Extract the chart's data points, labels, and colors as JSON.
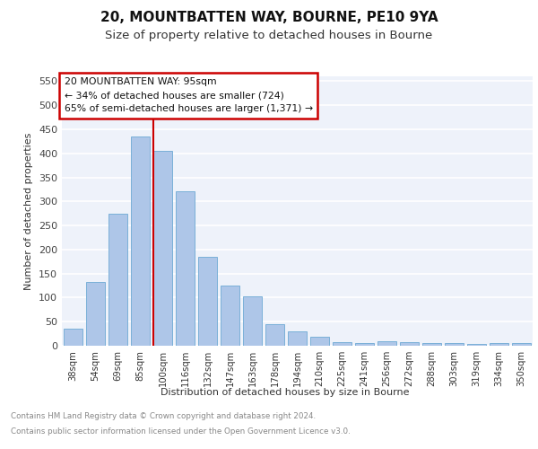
{
  "title1": "20, MOUNTBATTEN WAY, BOURNE, PE10 9YA",
  "title2": "Size of property relative to detached houses in Bourne",
  "xlabel": "Distribution of detached houses by size in Bourne",
  "ylabel": "Number of detached properties",
  "categories": [
    "38sqm",
    "54sqm",
    "69sqm",
    "85sqm",
    "100sqm",
    "116sqm",
    "132sqm",
    "147sqm",
    "163sqm",
    "178sqm",
    "194sqm",
    "210sqm",
    "225sqm",
    "241sqm",
    "256sqm",
    "272sqm",
    "288sqm",
    "303sqm",
    "319sqm",
    "334sqm",
    "350sqm"
  ],
  "values": [
    35,
    132,
    274,
    435,
    405,
    322,
    184,
    126,
    103,
    45,
    30,
    18,
    7,
    5,
    10,
    8,
    5,
    5,
    4,
    5,
    5
  ],
  "bar_color": "#aec6e8",
  "bar_edge_color": "#7ab0d8",
  "vline_position": 3.575,
  "vline_color": "#cc0000",
  "box_edge_color": "#cc0000",
  "annotation_text": "20 MOUNTBATTEN WAY: 95sqm\n← 34% of detached houses are smaller (724)\n65% of semi-detached houses are larger (1,371) →",
  "footnote1": "Contains HM Land Registry data © Crown copyright and database right 2024.",
  "footnote2": "Contains public sector information licensed under the Open Government Licence v3.0.",
  "ylim": [
    0,
    560
  ],
  "yticks": [
    0,
    50,
    100,
    150,
    200,
    250,
    300,
    350,
    400,
    450,
    500,
    550
  ],
  "bg_color": "#eef2fa",
  "grid_color": "#ffffff",
  "title1_fontsize": 11,
  "title2_fontsize": 9.5
}
